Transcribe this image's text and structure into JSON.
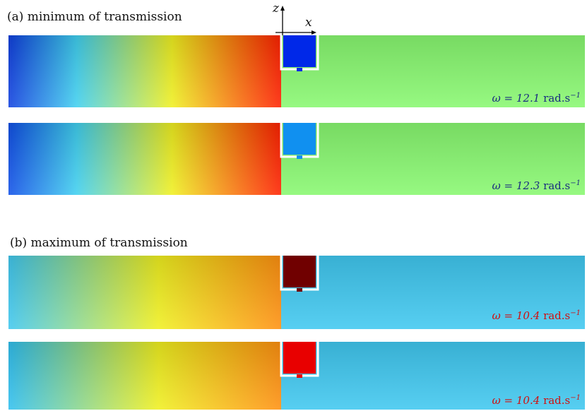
{
  "section_a": {
    "caption": "(a) minimum of transmission"
  },
  "section_b": {
    "caption": "(b) maximum of transmission"
  },
  "axes": {
    "z_label": "z",
    "x_label": "x"
  },
  "panels": [
    {
      "id": "p1",
      "omega_symbol": "ω = 12.1",
      "omega_unit": "rad.s",
      "omega_exp": "−1",
      "label_color": "#1a2f80",
      "left_stops": [
        "#1040e0",
        "#40d0f0",
        "#f0f020",
        "#ff2000"
      ],
      "tank_fill": "#0028e8",
      "right_color": "#88f870"
    },
    {
      "id": "p2",
      "omega_symbol": "ω = 12.3",
      "omega_unit": "rad.s",
      "omega_exp": "−1",
      "label_color": "#1a2f80",
      "left_stops": [
        "#1050e8",
        "#40d0f0",
        "#f0f020",
        "#ff2000"
      ],
      "tank_fill": "#1090f0",
      "right_color": "#88f870"
    },
    {
      "id": "p3",
      "omega_symbol": "ω = 10.4",
      "omega_unit": "rad.s",
      "omega_exp": "−1",
      "label_color": "#d01010",
      "left_stops": [
        "#40c8f0",
        "#f0f020",
        "#ff9010"
      ],
      "tank_fill": "#700000",
      "right_color": "#40c8f0"
    },
    {
      "id": "p4",
      "omega_symbol": "ω = 10.4",
      "omega_unit": "rad.s",
      "omega_exp": "−1",
      "label_color": "#d01010",
      "left_stops": [
        "#30c0f0",
        "#f0f020",
        "#ff9010"
      ],
      "tank_fill": "#e80000",
      "right_color": "#40c8f0"
    }
  ]
}
